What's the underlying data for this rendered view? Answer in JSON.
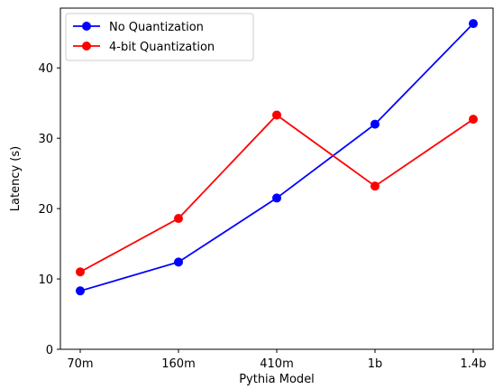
{
  "chart_data": {
    "type": "line",
    "categories": [
      "70m",
      "160m",
      "410m",
      "1b",
      "1.4b"
    ],
    "series": [
      {
        "name": "No Quantization",
        "color": "#0000ff",
        "values": [
          8.3,
          12.4,
          21.5,
          32.0,
          46.3
        ]
      },
      {
        "name": "4-bit Quantization",
        "color": "#ff0000",
        "values": [
          11.0,
          18.6,
          33.3,
          23.2,
          32.7
        ]
      }
    ],
    "xlabel": "Pythia Model",
    "ylabel": "Latency (s)",
    "ylim": [
      0,
      48.5
    ],
    "yticks": [
      0,
      10,
      20,
      30,
      40
    ],
    "grid": false,
    "legend_position": "upper-left",
    "marker": "circle"
  }
}
